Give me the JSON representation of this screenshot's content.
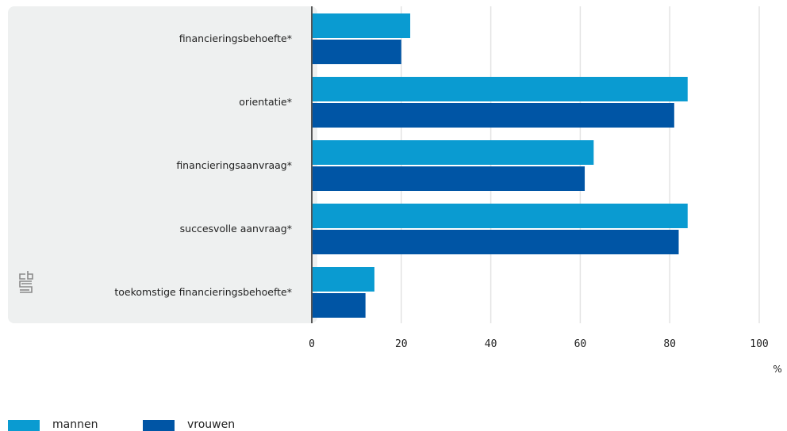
{
  "chart_data": {
    "type": "bar",
    "orientation": "horizontal",
    "categories": [
      "financieringsbehoefte*",
      "orientatie*",
      "financieringsaanvraag*",
      "succesvolle aanvraag*",
      "toekomstige financieringsbehoefte*"
    ],
    "series": [
      {
        "name": "mannen",
        "color": "#0a9bd1",
        "values": [
          22,
          84,
          63,
          84,
          14
        ]
      },
      {
        "name": "vrouwen",
        "color": "#0055a5",
        "values": [
          20,
          81,
          61,
          82,
          12
        ]
      }
    ],
    "xticks": [
      0,
      20,
      40,
      60,
      80,
      100
    ],
    "xlim": [
      0,
      100
    ],
    "xunit": "%",
    "title": "",
    "xlabel": "",
    "ylabel": "",
    "grid": true,
    "legend_position": "bottom-left",
    "logo": {
      "text": "cbs",
      "icon": "cbs-logo-icon"
    }
  }
}
